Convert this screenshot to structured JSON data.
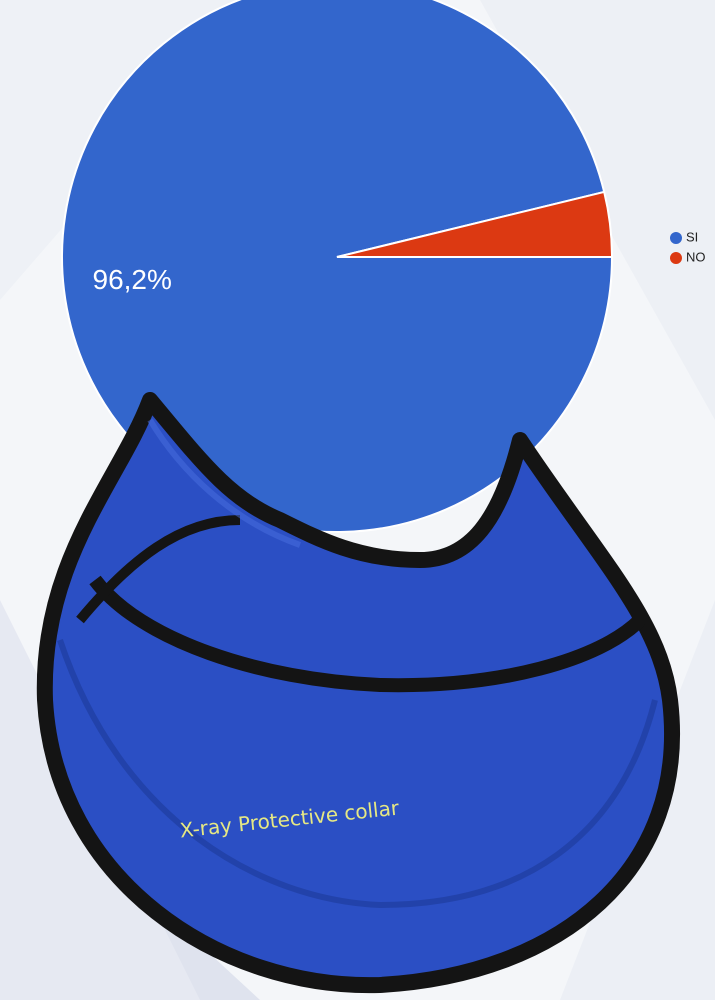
{
  "chart_data": {
    "type": "pie",
    "categories": [
      "SI",
      "NO"
    ],
    "values": [
      96.2,
      3.8
    ],
    "value_labels": [
      "96,2%",
      null
    ],
    "colors": [
      "#3366cc",
      "#dc3912"
    ],
    "start_angle": "east",
    "direction": "clockwise",
    "legend": "right"
  },
  "image": {
    "text": "X-ray Protective collar"
  }
}
